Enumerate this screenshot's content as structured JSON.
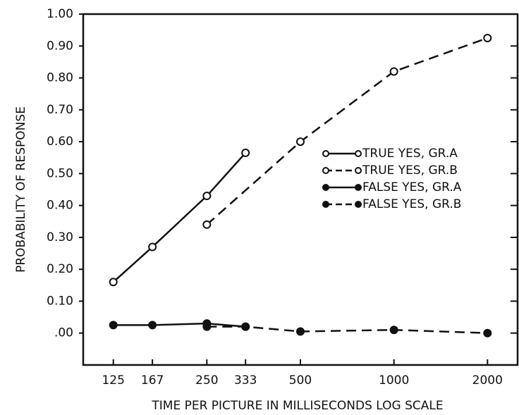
{
  "chart_data": {
    "type": "line",
    "y_label": "PROBABILITY OF RESPONSE",
    "x_label": "TIME PER PICTURE IN MILLISECONDS LOG SCALE",
    "xscale": "log",
    "xlim": [
      100,
      2500
    ],
    "xticks": [
      125,
      167,
      250,
      333,
      500,
      1000,
      2000
    ],
    "ylim": [
      -0.1,
      1.0
    ],
    "yticks": [
      {
        "value": 1.0,
        "label": "1.00"
      },
      {
        "value": 0.9,
        "label": "0.90"
      },
      {
        "value": 0.8,
        "label": "0.80"
      },
      {
        "value": 0.7,
        "label": "0.70"
      },
      {
        "value": 0.6,
        "label": "0.60"
      },
      {
        "value": 0.5,
        "label": "0.50"
      },
      {
        "value": 0.4,
        "label": "0.40"
      },
      {
        "value": 0.3,
        "label": "0.30"
      },
      {
        "value": 0.2,
        "label": "0.20"
      },
      {
        "value": 0.1,
        "label": "0.10"
      },
      {
        "value": 0.0,
        "label": ".00"
      }
    ],
    "grid": false,
    "legend_position": "right",
    "series": [
      {
        "name": "TRUE YES, GR.A",
        "color": "#111111",
        "marker": "open",
        "dashed": false,
        "x": [
          125,
          167,
          250,
          333
        ],
        "values": [
          0.16,
          0.27,
          0.43,
          0.565
        ]
      },
      {
        "name": "TRUE YES, GR.B",
        "color": "#111111",
        "marker": "open",
        "dashed": true,
        "x": [
          250,
          500,
          1000,
          2000
        ],
        "values": [
          0.34,
          0.6,
          0.82,
          0.925
        ]
      },
      {
        "name": "FALSE YES, GR.A",
        "color": "#111111",
        "marker": "filled",
        "dashed": false,
        "x": [
          125,
          167,
          250,
          333
        ],
        "values": [
          0.025,
          0.025,
          0.03,
          0.02
        ]
      },
      {
        "name": "FALSE YES, GR.B",
        "color": "#111111",
        "marker": "filled",
        "dashed": true,
        "x": [
          250,
          333,
          500,
          1000,
          2000
        ],
        "values": [
          0.02,
          0.02,
          0.005,
          0.01,
          0.0
        ]
      }
    ]
  }
}
